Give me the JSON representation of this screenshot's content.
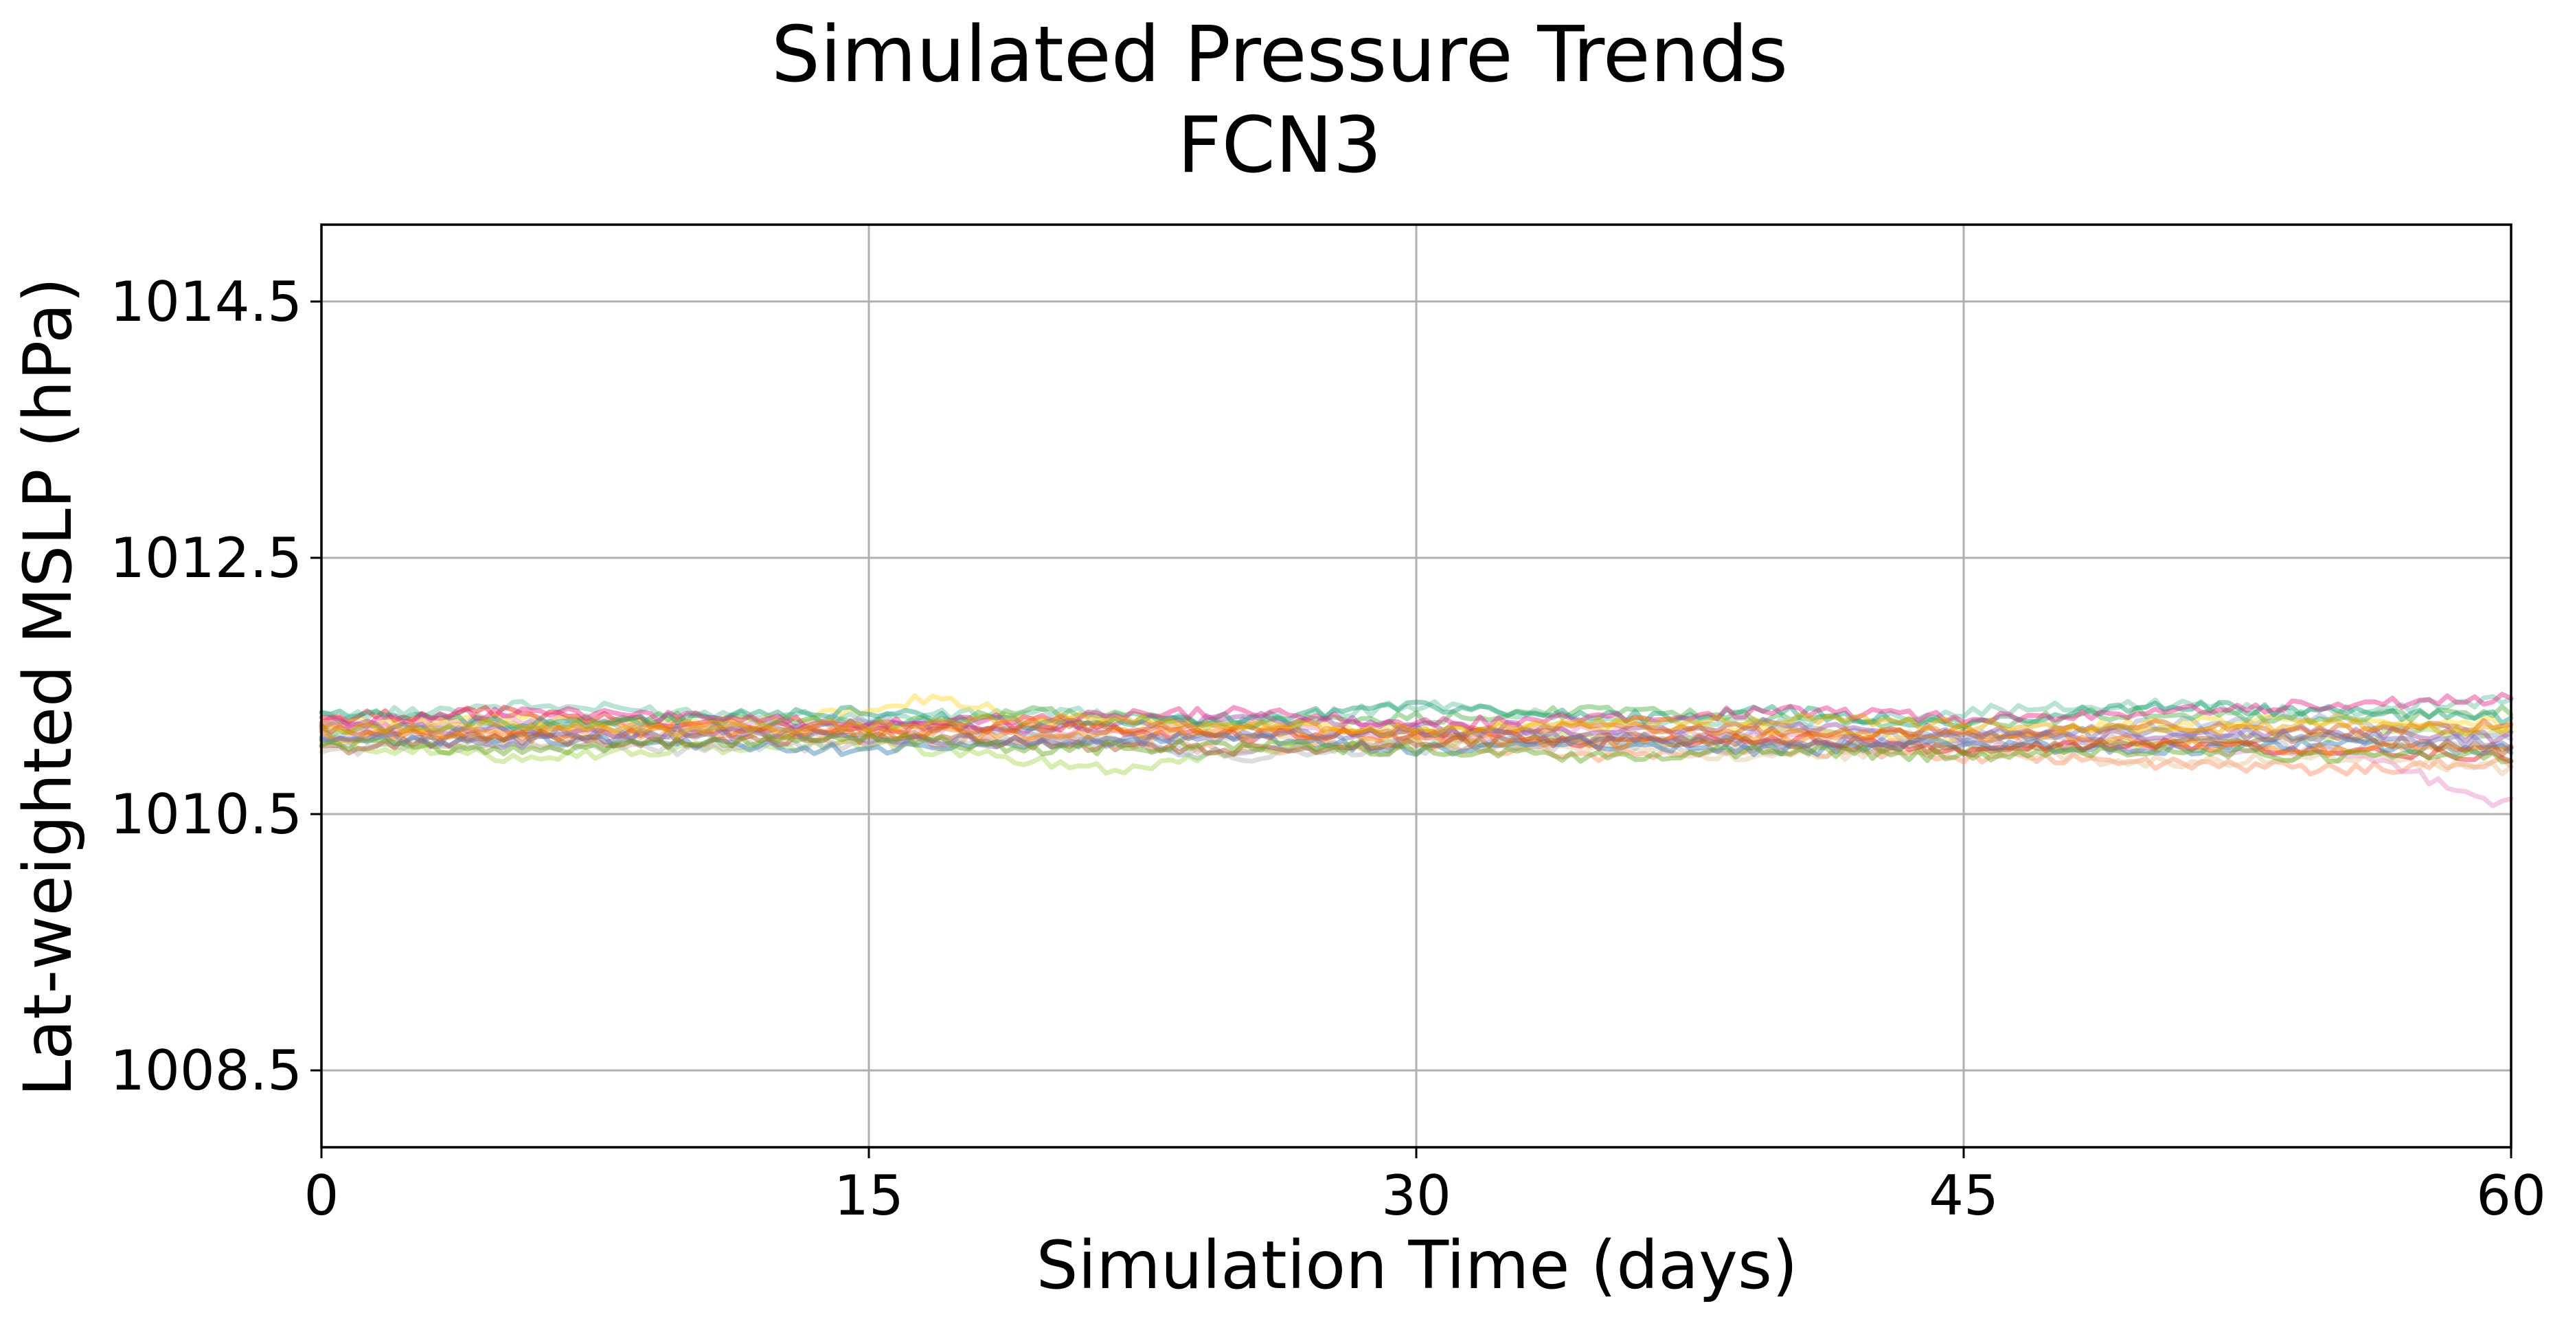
{
  "chart_data": {
    "type": "line",
    "title": "Simulated Pressure Trends",
    "subtitle": "FCN3",
    "xlabel": "Simulation Time (days)",
    "ylabel": "Lat-weighted MSLP (hPa)",
    "xlim": [
      0,
      60
    ],
    "ylim": [
      1007.9,
      1015.1
    ],
    "xticks": [
      0,
      15,
      30,
      45,
      60
    ],
    "xtick_labels": [
      "0",
      "15",
      "30",
      "45",
      "60"
    ],
    "yticks": [
      1008.5,
      1010.5,
      1012.5,
      1014.5
    ],
    "ytick_labels": [
      "1008.5",
      "1010.5",
      "1012.5",
      "1014.5"
    ],
    "grid": true,
    "legend": "none",
    "series_alpha": 0.45,
    "series": [
      {
        "color": "#66c2a5",
        "x": [
          0,
          5,
          10,
          15,
          20,
          25,
          30,
          35,
          40,
          45,
          50,
          55,
          60
        ],
        "y": [
          1011.25,
          1011.35,
          1011.3,
          1011.25,
          1011.3,
          1011.2,
          1011.35,
          1011.25,
          1011.2,
          1011.3,
          1011.35,
          1011.3,
          1011.4
        ]
      },
      {
        "color": "#fc8d62",
        "x": [
          0,
          5,
          10,
          15,
          20,
          25,
          30,
          35,
          40,
          45,
          50,
          55,
          60
        ],
        "y": [
          1011.2,
          1011.1,
          1011.15,
          1011.05,
          1011.1,
          1011.0,
          1011.05,
          1010.95,
          1011.0,
          1010.95,
          1010.9,
          1010.85,
          1010.9
        ]
      },
      {
        "color": "#8da0cb",
        "x": [
          0,
          5,
          10,
          15,
          20,
          25,
          30,
          35,
          40,
          45,
          50,
          55,
          60
        ],
        "y": [
          1011.1,
          1011.2,
          1011.15,
          1011.25,
          1011.1,
          1010.95,
          1011.1,
          1011.05,
          1011.15,
          1011.1,
          1011.2,
          1011.25,
          1011.1
        ]
      },
      {
        "color": "#e78ac3",
        "x": [
          0,
          5,
          10,
          15,
          20,
          25,
          30,
          35,
          40,
          45,
          50,
          55,
          56,
          57,
          58,
          59,
          60
        ],
        "y": [
          1011.15,
          1011.25,
          1011.2,
          1011.2,
          1011.15,
          1011.2,
          1011.1,
          1011.15,
          1011.1,
          1011.05,
          1011.0,
          1011.0,
          1010.95,
          1010.85,
          1010.75,
          1010.6,
          1010.6
        ]
      },
      {
        "color": "#a6d854",
        "x": [
          0,
          5,
          10,
          15,
          20,
          22,
          25,
          30,
          35,
          40,
          45,
          50,
          55,
          60
        ],
        "y": [
          1011.05,
          1010.95,
          1011.0,
          1011.05,
          1010.9,
          1010.85,
          1011.0,
          1011.05,
          1011.1,
          1011.05,
          1011.0,
          1011.05,
          1011.1,
          1011.15
        ]
      },
      {
        "color": "#ffd92f",
        "x": [
          0,
          5,
          10,
          15,
          16.5,
          20,
          25,
          30,
          35,
          40,
          45,
          50,
          55,
          60
        ],
        "y": [
          1011.2,
          1011.25,
          1011.2,
          1011.3,
          1011.4,
          1011.25,
          1011.2,
          1011.15,
          1011.2,
          1011.15,
          1011.1,
          1011.2,
          1011.25,
          1011.2
        ]
      },
      {
        "color": "#e5c494",
        "x": [
          0,
          5,
          10,
          15,
          20,
          25,
          30,
          35,
          40,
          45,
          50,
          55,
          60
        ],
        "y": [
          1011.1,
          1011.05,
          1011.1,
          1011.15,
          1011.05,
          1011.1,
          1011.05,
          1011.0,
          1010.95,
          1011.0,
          1010.9,
          1010.95,
          1010.85
        ]
      },
      {
        "color": "#b3b3b3",
        "x": [
          0,
          5,
          10,
          15,
          20,
          25,
          30,
          35,
          40,
          45,
          50,
          55,
          60
        ],
        "y": [
          1011.0,
          1011.05,
          1011.0,
          1011.05,
          1011.1,
          1010.95,
          1011.0,
          1011.05,
          1011.0,
          1011.05,
          1011.1,
          1011.0,
          1011.05
        ]
      },
      {
        "color": "#e41a1c",
        "x": [
          0,
          5,
          10,
          15,
          20,
          25,
          30,
          35,
          40,
          45,
          50,
          55,
          60
        ],
        "y": [
          1011.25,
          1011.3,
          1011.2,
          1011.15,
          1011.2,
          1011.1,
          1011.15,
          1011.05,
          1011.1,
          1011.0,
          1011.05,
          1011.0,
          1010.95
        ]
      },
      {
        "color": "#4daf4a",
        "x": [
          0,
          5,
          10,
          15,
          20,
          25,
          30,
          35,
          40,
          45,
          50,
          55,
          60
        ],
        "y": [
          1011.15,
          1011.2,
          1011.25,
          1011.2,
          1011.3,
          1011.2,
          1011.25,
          1011.3,
          1011.25,
          1011.2,
          1011.3,
          1011.25,
          1011.3
        ]
      },
      {
        "color": "#377eb8",
        "x": [
          0,
          5,
          10,
          15,
          20,
          25,
          30,
          35,
          40,
          45,
          50,
          55,
          60
        ],
        "y": [
          1011.05,
          1011.1,
          1011.05,
          1011.0,
          1011.05,
          1011.1,
          1011.0,
          1011.05,
          1011.0,
          1011.05,
          1011.0,
          1011.05,
          1011.0
        ]
      },
      {
        "color": "#984ea3",
        "x": [
          0,
          5,
          10,
          15,
          20,
          25,
          30,
          35,
          40,
          45,
          50,
          55,
          60
        ],
        "y": [
          1011.2,
          1011.15,
          1011.1,
          1011.2,
          1011.15,
          1011.25,
          1011.2,
          1011.15,
          1011.2,
          1011.15,
          1011.1,
          1011.15,
          1011.1
        ]
      },
      {
        "color": "#ff7f00",
        "x": [
          0,
          5,
          10,
          15,
          20,
          25,
          30,
          35,
          40,
          45,
          50,
          55,
          60
        ],
        "y": [
          1011.1,
          1011.15,
          1011.2,
          1011.15,
          1011.1,
          1011.15,
          1011.1,
          1011.05,
          1011.1,
          1011.15,
          1011.05,
          1011.0,
          1011.05
        ]
      },
      {
        "color": "#a65628",
        "x": [
          0,
          5,
          10,
          15,
          20,
          25,
          30,
          35,
          40,
          45,
          50,
          55,
          60
        ],
        "y": [
          1011.0,
          1011.1,
          1011.05,
          1011.1,
          1011.05,
          1011.0,
          1011.05,
          1011.1,
          1011.05,
          1011.0,
          1011.05,
          1011.1,
          1011.0
        ]
      },
      {
        "color": "#1b9e77",
        "x": [
          0,
          5,
          10,
          15,
          20,
          25,
          30,
          35,
          40,
          45,
          50,
          55,
          60
        ],
        "y": [
          1011.3,
          1011.2,
          1011.25,
          1011.3,
          1011.2,
          1011.25,
          1011.35,
          1011.25,
          1011.3,
          1011.2,
          1011.35,
          1011.3,
          1011.25
        ]
      },
      {
        "color": "#d95f02",
        "x": [
          0,
          5,
          10,
          15,
          20,
          25,
          30,
          35,
          40,
          45,
          50,
          55,
          60
        ],
        "y": [
          1011.15,
          1011.1,
          1011.15,
          1011.1,
          1011.2,
          1011.15,
          1011.1,
          1011.2,
          1011.15,
          1011.1,
          1011.2,
          1011.15,
          1011.2
        ]
      },
      {
        "color": "#7570b3",
        "x": [
          0,
          5,
          10,
          15,
          20,
          25,
          30,
          35,
          40,
          45,
          50,
          55,
          60
        ],
        "y": [
          1011.1,
          1011.05,
          1011.15,
          1011.1,
          1011.05,
          1011.1,
          1011.15,
          1011.1,
          1011.05,
          1011.1,
          1011.15,
          1011.1,
          1011.05
        ]
      },
      {
        "color": "#e7298a",
        "x": [
          0,
          5,
          10,
          15,
          20,
          25,
          30,
          35,
          40,
          45,
          50,
          55,
          60
        ],
        "y": [
          1011.2,
          1011.3,
          1011.25,
          1011.2,
          1011.25,
          1011.3,
          1011.2,
          1011.25,
          1011.3,
          1011.25,
          1011.3,
          1011.35,
          1011.4
        ]
      },
      {
        "color": "#66a61e",
        "x": [
          0,
          5,
          10,
          15,
          20,
          25,
          30,
          35,
          40,
          45,
          50,
          55,
          60
        ],
        "y": [
          1011.05,
          1011.0,
          1011.05,
          1011.1,
          1011.0,
          1011.05,
          1011.0,
          1010.95,
          1011.0,
          1010.95,
          1011.0,
          1010.95,
          1010.95
        ]
      },
      {
        "color": "#e6ab02",
        "x": [
          0,
          5,
          10,
          15,
          20,
          25,
          30,
          35,
          40,
          45,
          50,
          55,
          60
        ],
        "y": [
          1011.15,
          1011.2,
          1011.15,
          1011.2,
          1011.25,
          1011.2,
          1011.15,
          1011.2,
          1011.25,
          1011.2,
          1011.15,
          1011.2,
          1011.15
        ]
      }
    ]
  }
}
